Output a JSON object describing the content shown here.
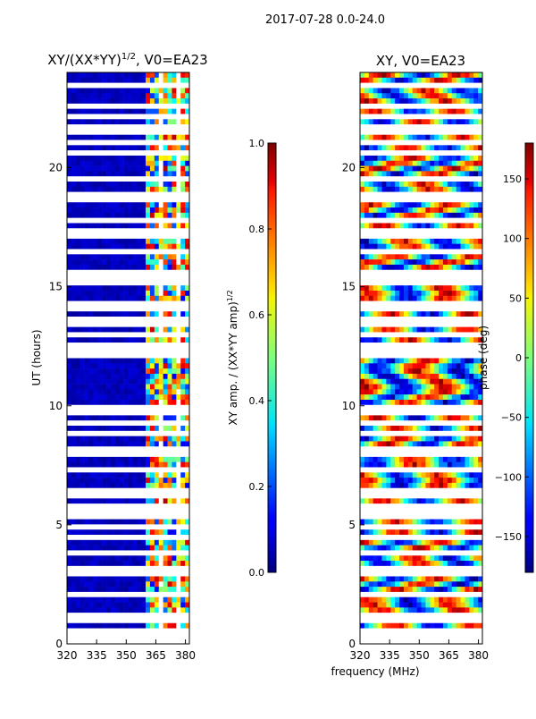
{
  "suptitle": "2017-07-28 0.0-24.0",
  "xlabel": "frequency (MHz)",
  "chart_data": [
    {
      "type": "heatmap",
      "title": "XY/(XX*YY)",
      "title_exp": "1/2",
      "title_suffix": ", V0=EA23",
      "ylabel": "UT (hours)",
      "xlim": [
        320,
        382
      ],
      "ylim": [
        0,
        24
      ],
      "x_ticks": [
        320,
        335,
        350,
        365,
        380
      ],
      "y_ticks": [
        0,
        5,
        10,
        15,
        20
      ],
      "colorbar": {
        "label": "XY amp. / (XX*YY amp)",
        "label_exp": "1/2",
        "range": [
          0.0,
          1.0
        ],
        "ticks": [
          "0.0",
          "0.2",
          "0.4",
          "0.6",
          "0.8",
          "1.0"
        ],
        "colormap": "jet"
      }
    },
    {
      "type": "heatmap",
      "title": "XY, V0=EA23",
      "xlim": [
        320,
        382
      ],
      "ylim": [
        0,
        24
      ],
      "x_ticks": [
        320,
        335,
        350,
        365,
        380
      ],
      "y_ticks": [
        0,
        5,
        10,
        15,
        20
      ],
      "colorbar": {
        "label": "phase (deg)",
        "range": [
          -180,
          180
        ],
        "ticks": [
          "150",
          "100",
          "50",
          "0",
          "−50",
          "−100",
          "−150"
        ],
        "colormap": "jet"
      }
    }
  ]
}
